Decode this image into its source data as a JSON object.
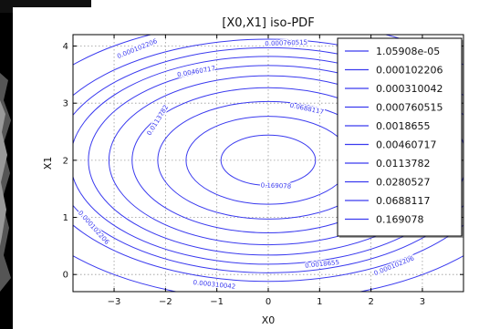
{
  "chart_data": {
    "type": "contour",
    "title": "[X0,X1] iso-PDF",
    "xlabel": "X0",
    "ylabel": "X1",
    "xlim": [
      -3.8,
      3.8
    ],
    "ylim": [
      -0.3,
      4.2
    ],
    "x_ticks": [
      -3,
      -2,
      -1,
      0,
      1,
      2,
      3
    ],
    "y_ticks": [
      0,
      1,
      2,
      3,
      4
    ],
    "x_tick_labels": [
      "−3",
      "−2",
      "−1",
      "0",
      "1",
      "2",
      "3"
    ],
    "y_tick_labels": [
      "0",
      "1",
      "2",
      "3",
      "4"
    ],
    "grid": true,
    "legend_position": "top-right",
    "line_color": "#3a3aef",
    "center": [
      0,
      2
    ],
    "levels": [
      {
        "label": "1.05908e-05",
        "value": 1.05908e-05,
        "semi_axes": [
          5.2,
          2.45
        ]
      },
      {
        "label": "0.000102206",
        "value": 0.000102206,
        "semi_axes": [
          4.5,
          2.12
        ]
      },
      {
        "label": "0.000310042",
        "value": 0.000310042,
        "semi_axes": [
          4.15,
          1.97
        ]
      },
      {
        "label": "0.000760515",
        "value": 0.000760515,
        "semi_axes": [
          3.85,
          1.82
        ]
      },
      {
        "label": "0.0018655",
        "value": 0.0018655,
        "semi_axes": [
          3.5,
          1.66
        ]
      },
      {
        "label": "0.00460717",
        "value": 0.00460717,
        "semi_axes": [
          3.1,
          1.48
        ]
      },
      {
        "label": "0.0113782",
        "value": 0.0113782,
        "semi_axes": [
          2.65,
          1.27
        ]
      },
      {
        "label": "0.0280527",
        "value": 0.0280527,
        "semi_axes": [
          2.15,
          1.03
        ]
      },
      {
        "label": "0.0688117",
        "value": 0.0688117,
        "semi_axes": [
          1.6,
          0.77
        ]
      },
      {
        "label": "0.169078",
        "value": 0.169078,
        "semi_axes": [
          0.92,
          0.44
        ]
      }
    ],
    "inline_labels": [
      {
        "text": "0.000102206",
        "x": -2.55,
        "y": 3.95,
        "angle": -22
      },
      {
        "text": "0.000760515",
        "x": 0.35,
        "y": 4.05,
        "angle": -2
      },
      {
        "text": "0.00460717",
        "x": -1.4,
        "y": 3.55,
        "angle": -10
      },
      {
        "text": "0.0113782",
        "x": -2.15,
        "y": 2.7,
        "angle": -58
      },
      {
        "text": "0.0688117",
        "x": 0.75,
        "y": 2.9,
        "angle": 12
      },
      {
        "text": "0.169078",
        "x": 0.15,
        "y": 1.55,
        "angle": 2
      },
      {
        "text": "0.000102206",
        "x": -3.4,
        "y": 0.82,
        "angle": 48
      },
      {
        "text": "0.0018655",
        "x": 1.05,
        "y": 0.18,
        "angle": -6
      },
      {
        "text": "0.000310042",
        "x": -1.05,
        "y": -0.18,
        "angle": 6
      },
      {
        "text": "0.000102206",
        "x": 2.45,
        "y": 0.15,
        "angle": -22
      }
    ]
  }
}
